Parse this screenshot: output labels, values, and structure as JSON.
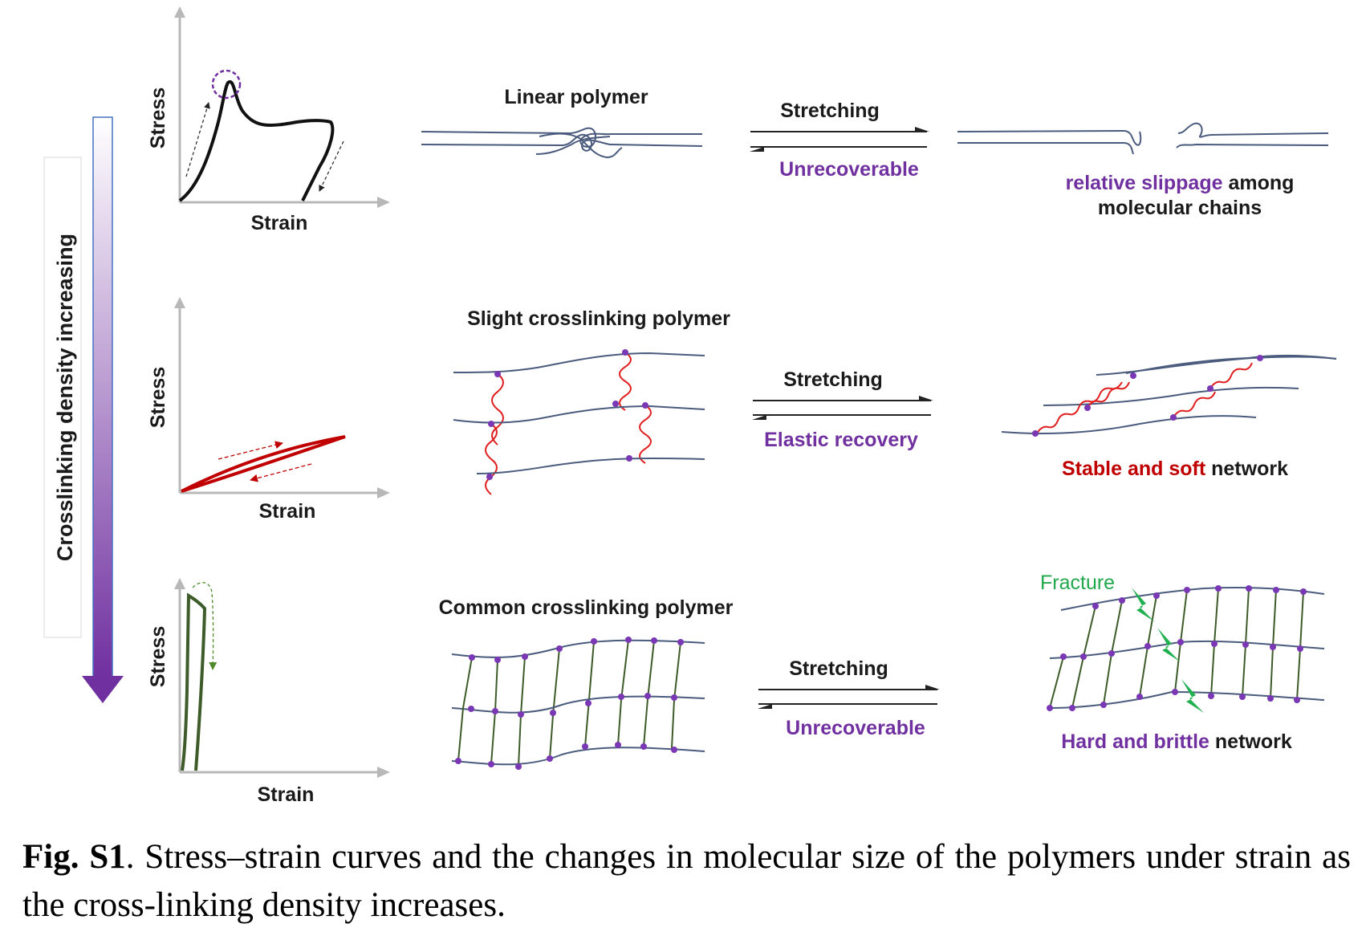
{
  "side_label": "Crosslinking density increasing",
  "colors": {
    "chain": "#4a5b7d",
    "node": "#7a38b5",
    "purple_text": "#7030a0",
    "red": "#c00000",
    "red_crosslink": "#e02020",
    "green_curve": "#3d5c2a",
    "green_text": "#21a84d",
    "axis": "#b8b8b8",
    "arrow_gradient_top": "#ffffff",
    "arrow_gradient_bottom": "#7030a0"
  },
  "rows": [
    {
      "graph": {
        "ylabel": "Stress",
        "xlabel": "Strain"
      },
      "title": "Linear polymer",
      "arrow_top": "Stretching",
      "arrow_bottom": "Unrecoverable",
      "result_colored": "relative slippage",
      "result_plain": " among",
      "result_line2": "molecular chains"
    },
    {
      "graph": {
        "ylabel": "Stress",
        "xlabel": "Strain"
      },
      "title": "Slight crosslinking polymer",
      "arrow_top": "Stretching",
      "arrow_bottom": "Elastic recovery",
      "result_colored": "Stable and soft",
      "result_plain": " network"
    },
    {
      "graph": {
        "ylabel": "Stress",
        "xlabel": "Strain"
      },
      "title": "Common crosslinking polymer",
      "arrow_top": "Stretching",
      "arrow_bottom": "Unrecoverable",
      "fracture_label": "Fracture",
      "result_colored": "Hard and brittle",
      "result_plain": " network"
    }
  ],
  "caption": {
    "label": "Fig. S1",
    "text": ". Stress–strain curves and the changes in molecular size of the polymers under strain as the cross-linking density increases."
  }
}
